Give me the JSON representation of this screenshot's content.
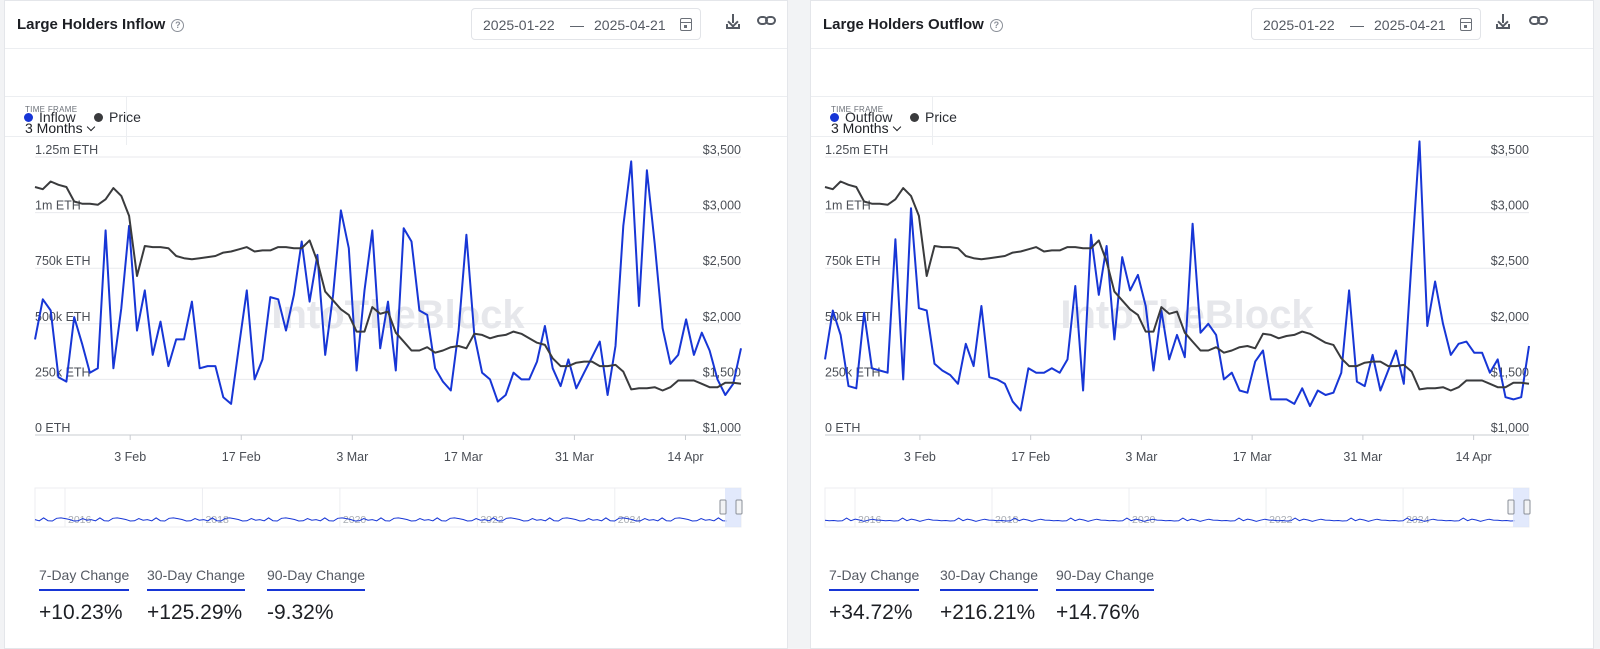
{
  "colors": {
    "accent": "#1736d6",
    "price": "#3a3b3d",
    "grid": "#e8eaed"
  },
  "panels": [
    {
      "title": "Large Holders Inflow",
      "help_icon": "question-circle-icon",
      "date_start": "2025-01-22",
      "date_sep": "—",
      "date_end": "2025-04-21",
      "timeframe_label": "TIME FRAME",
      "timeframe_value": "3 Months",
      "legend": [
        {
          "label": "Inflow",
          "color": "#1736d6"
        },
        {
          "label": "Price",
          "color": "#3a3b3d"
        }
      ],
      "watermark": "IntoTheBlock",
      "changes": [
        {
          "label": "7-Day Change",
          "value": "+10.23%"
        },
        {
          "label": "30-Day Change",
          "value": "+125.29%"
        },
        {
          "label": "90-Day Change",
          "value": "-9.32%"
        }
      ]
    },
    {
      "title": "Large Holders Outflow",
      "help_icon": "question-circle-icon",
      "date_start": "2025-01-22",
      "date_sep": "—",
      "date_end": "2025-04-21",
      "timeframe_label": "TIME FRAME",
      "timeframe_value": "3 Months",
      "legend": [
        {
          "label": "Outflow",
          "color": "#1736d6"
        },
        {
          "label": "Price",
          "color": "#3a3b3d"
        }
      ],
      "watermark": "IntoTheBlock",
      "changes": [
        {
          "label": "7-Day Change",
          "value": "+34.72%"
        },
        {
          "label": "30-Day Change",
          "value": "+216.21%"
        },
        {
          "label": "90-Day Change",
          "value": "+14.76%"
        }
      ]
    }
  ],
  "chart_data": [
    {
      "type": "line",
      "title": "Large Holders Inflow",
      "x_start": "2025-01-22",
      "x_end": "2025-04-21",
      "x_ticks": [
        {
          "date": "2025-02-03",
          "label": "3 Feb"
        },
        {
          "date": "2025-02-17",
          "label": "17 Feb"
        },
        {
          "date": "2025-03-03",
          "label": "3 Mar"
        },
        {
          "date": "2025-03-17",
          "label": "17 Mar"
        },
        {
          "date": "2025-03-31",
          "label": "31 Mar"
        },
        {
          "date": "2025-04-14",
          "label": "14 Apr"
        }
      ],
      "y_left": {
        "min": 0,
        "max": 1250000,
        "ticks": [
          0,
          250000,
          500000,
          750000,
          1000000,
          1250000
        ],
        "tick_labels": [
          "0 ETH",
          "250k ETH",
          "500k ETH",
          "750k ETH",
          "1m ETH",
          "1.25m ETH"
        ]
      },
      "y_right": {
        "min": 1000,
        "max": 3500,
        "ticks": [
          1000,
          1500,
          2000,
          2500,
          3000,
          3500
        ],
        "tick_labels": [
          "$1,000",
          "$1,500",
          "$2,000",
          "$2,500",
          "$3,000",
          "$3,500"
        ]
      },
      "grid": true,
      "legend_position": "top-left",
      "series": [
        {
          "name": "Inflow",
          "axis": "left",
          "values": [
            430000,
            610000,
            560000,
            260000,
            240000,
            530000,
            410000,
            280000,
            300000,
            920000,
            300000,
            570000,
            940000,
            470000,
            650000,
            360000,
            510000,
            310000,
            430000,
            430000,
            600000,
            300000,
            310000,
            310000,
            170000,
            140000,
            400000,
            650000,
            250000,
            340000,
            620000,
            610000,
            470000,
            630000,
            870000,
            600000,
            810000,
            360000,
            630000,
            1010000,
            840000,
            290000,
            650000,
            920000,
            390000,
            600000,
            290000,
            930000,
            870000,
            560000,
            540000,
            300000,
            240000,
            200000,
            470000,
            900000,
            450000,
            280000,
            250000,
            150000,
            180000,
            280000,
            250000,
            250000,
            330000,
            490000,
            300000,
            220000,
            340000,
            210000,
            280000,
            350000,
            420000,
            180000,
            400000,
            940000,
            1230000,
            580000,
            1190000,
            860000,
            480000,
            320000,
            360000,
            520000,
            360000,
            460000,
            380000,
            250000,
            180000,
            230000,
            390000
          ]
        },
        {
          "name": "Price",
          "axis": "right",
          "values": [
            3230,
            3210,
            3280,
            3250,
            3230,
            3100,
            3080,
            3080,
            3070,
            3120,
            3220,
            3150,
            2970,
            2430,
            2700,
            2690,
            2690,
            2680,
            2610,
            2590,
            2580,
            2590,
            2600,
            2610,
            2640,
            2650,
            2670,
            2690,
            2650,
            2660,
            2660,
            2690,
            2690,
            2680,
            2680,
            2750,
            2560,
            2290,
            2210,
            2130,
            2080,
            1930,
            1930,
            2150,
            2090,
            2110,
            1920,
            1840,
            1760,
            1760,
            1790,
            1740,
            1760,
            1790,
            1800,
            1780,
            1910,
            1900,
            1870,
            1890,
            1900,
            1930,
            1910,
            1870,
            1830,
            1810,
            1690,
            1620,
            1620,
            1650,
            1660,
            1660,
            1620,
            1620,
            1630,
            1570,
            1410,
            1420,
            1420,
            1430,
            1400,
            1430,
            1490,
            1490,
            1490,
            1460,
            1430,
            1430,
            1470,
            1470,
            1460
          ]
        }
      ],
      "navigator": {
        "x_labels": [
          "2016",
          "2018",
          "2020",
          "2022",
          "2024"
        ]
      }
    },
    {
      "type": "line",
      "title": "Large Holders Outflow",
      "x_start": "2025-01-22",
      "x_end": "2025-04-21",
      "x_ticks": [
        {
          "date": "2025-02-03",
          "label": "3 Feb"
        },
        {
          "date": "2025-02-17",
          "label": "17 Feb"
        },
        {
          "date": "2025-03-03",
          "label": "3 Mar"
        },
        {
          "date": "2025-03-17",
          "label": "17 Mar"
        },
        {
          "date": "2025-03-31",
          "label": "31 Mar"
        },
        {
          "date": "2025-04-14",
          "label": "14 Apr"
        }
      ],
      "y_left": {
        "min": 0,
        "max": 1250000,
        "ticks": [
          0,
          250000,
          500000,
          750000,
          1000000,
          1250000
        ],
        "tick_labels": [
          "0 ETH",
          "250k ETH",
          "500k ETH",
          "750k ETH",
          "1m ETH",
          "1.25m ETH"
        ]
      },
      "y_right": {
        "min": 1000,
        "max": 3500,
        "ticks": [
          1000,
          1500,
          2000,
          2500,
          3000,
          3500
        ],
        "tick_labels": [
          "$1,000",
          "$1,500",
          "$2,000",
          "$2,500",
          "$3,000",
          "$3,500"
        ]
      },
      "grid": true,
      "legend_position": "top-left",
      "series": [
        {
          "name": "Outflow",
          "axis": "left",
          "values": [
            340000,
            560000,
            450000,
            220000,
            210000,
            550000,
            300000,
            290000,
            280000,
            880000,
            250000,
            1020000,
            570000,
            560000,
            320000,
            290000,
            270000,
            230000,
            410000,
            310000,
            580000,
            260000,
            250000,
            230000,
            150000,
            110000,
            300000,
            280000,
            280000,
            300000,
            280000,
            340000,
            670000,
            200000,
            900000,
            630000,
            850000,
            430000,
            800000,
            650000,
            720000,
            580000,
            290000,
            560000,
            340000,
            450000,
            350000,
            950000,
            460000,
            500000,
            450000,
            250000,
            280000,
            200000,
            190000,
            330000,
            380000,
            160000,
            160000,
            160000,
            140000,
            210000,
            130000,
            200000,
            180000,
            190000,
            280000,
            650000,
            240000,
            220000,
            360000,
            200000,
            290000,
            380000,
            230000,
            790000,
            1320000,
            490000,
            690000,
            500000,
            360000,
            410000,
            420000,
            370000,
            370000,
            280000,
            340000,
            170000,
            160000,
            170000,
            400000
          ]
        },
        {
          "name": "Price",
          "axis": "right",
          "values": [
            3230,
            3210,
            3280,
            3250,
            3230,
            3100,
            3080,
            3080,
            3070,
            3120,
            3220,
            3150,
            2970,
            2430,
            2700,
            2690,
            2690,
            2680,
            2610,
            2590,
            2580,
            2590,
            2600,
            2610,
            2640,
            2650,
            2670,
            2690,
            2650,
            2660,
            2660,
            2690,
            2690,
            2680,
            2680,
            2750,
            2560,
            2290,
            2210,
            2130,
            2080,
            1930,
            1930,
            2150,
            2090,
            2110,
            1920,
            1840,
            1760,
            1760,
            1790,
            1740,
            1760,
            1790,
            1800,
            1780,
            1910,
            1900,
            1870,
            1890,
            1900,
            1930,
            1910,
            1870,
            1830,
            1810,
            1690,
            1620,
            1620,
            1650,
            1660,
            1660,
            1620,
            1620,
            1630,
            1570,
            1410,
            1420,
            1420,
            1430,
            1400,
            1430,
            1490,
            1490,
            1490,
            1460,
            1430,
            1430,
            1470,
            1470,
            1460
          ]
        }
      ],
      "navigator": {
        "x_labels": [
          "2016",
          "2018",
          "2020",
          "2022",
          "2024"
        ]
      }
    }
  ]
}
